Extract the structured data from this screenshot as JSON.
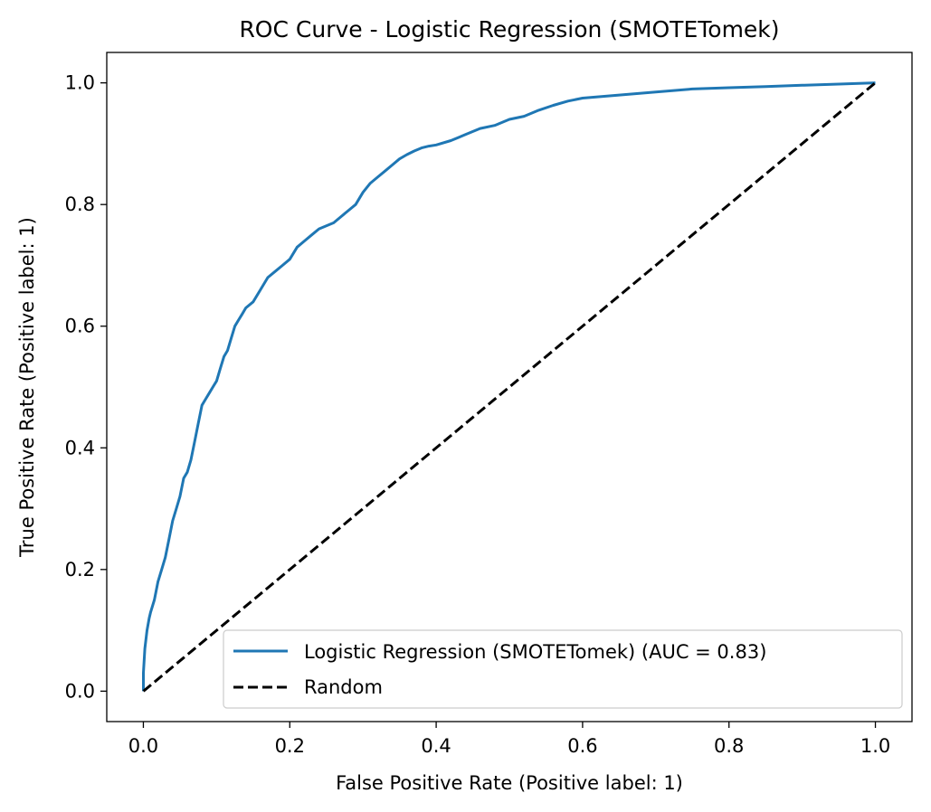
{
  "chart_data": {
    "type": "line",
    "title": "ROC Curve - Logistic Regression (SMOTETomek)",
    "xlabel": "False Positive Rate (Positive label: 1)",
    "ylabel": "True Positive Rate (Positive label: 1)",
    "xlim": [
      -0.05,
      1.05
    ],
    "ylim": [
      -0.05,
      1.05
    ],
    "x_ticks": [
      0.0,
      0.2,
      0.4,
      0.6,
      0.8,
      1.0
    ],
    "y_ticks": [
      0.0,
      0.2,
      0.4,
      0.6,
      0.8,
      1.0
    ],
    "x_tick_labels": [
      "0.0",
      "0.2",
      "0.4",
      "0.6",
      "0.8",
      "1.0"
    ],
    "y_tick_labels": [
      "0.0",
      "0.2",
      "0.4",
      "0.6",
      "0.8",
      "1.0"
    ],
    "grid": false,
    "legend_position": "lower-right",
    "series": [
      {
        "name": "Logistic Regression (SMOTETomek) (AUC = 0.83)",
        "color": "#1f77b4",
        "style": "solid",
        "x": [
          0.0,
          0.0,
          0.002,
          0.005,
          0.008,
          0.01,
          0.015,
          0.02,
          0.025,
          0.03,
          0.035,
          0.04,
          0.045,
          0.05,
          0.055,
          0.06,
          0.065,
          0.07,
          0.075,
          0.08,
          0.085,
          0.09,
          0.095,
          0.1,
          0.105,
          0.11,
          0.115,
          0.12,
          0.125,
          0.13,
          0.135,
          0.14,
          0.15,
          0.16,
          0.17,
          0.18,
          0.19,
          0.2,
          0.21,
          0.22,
          0.23,
          0.24,
          0.25,
          0.26,
          0.27,
          0.28,
          0.29,
          0.3,
          0.31,
          0.32,
          0.33,
          0.34,
          0.35,
          0.36,
          0.37,
          0.38,
          0.39,
          0.4,
          0.42,
          0.44,
          0.46,
          0.48,
          0.5,
          0.52,
          0.54,
          0.56,
          0.58,
          0.6,
          0.65,
          0.7,
          0.75,
          0.8,
          0.85,
          0.9,
          0.95,
          1.0
        ],
        "y": [
          0.0,
          0.03,
          0.07,
          0.1,
          0.12,
          0.13,
          0.15,
          0.18,
          0.2,
          0.22,
          0.25,
          0.28,
          0.3,
          0.32,
          0.35,
          0.36,
          0.38,
          0.41,
          0.44,
          0.47,
          0.48,
          0.49,
          0.5,
          0.51,
          0.53,
          0.55,
          0.56,
          0.58,
          0.6,
          0.61,
          0.62,
          0.63,
          0.64,
          0.66,
          0.68,
          0.69,
          0.7,
          0.71,
          0.73,
          0.74,
          0.75,
          0.76,
          0.765,
          0.77,
          0.78,
          0.79,
          0.8,
          0.82,
          0.835,
          0.845,
          0.855,
          0.865,
          0.875,
          0.882,
          0.888,
          0.893,
          0.896,
          0.898,
          0.905,
          0.915,
          0.925,
          0.93,
          0.94,
          0.945,
          0.955,
          0.963,
          0.97,
          0.975,
          0.98,
          0.985,
          0.99,
          0.992,
          0.994,
          0.996,
          0.998,
          1.0
        ]
      },
      {
        "name": "Random",
        "color": "#000000",
        "style": "dashed",
        "x": [
          0.0,
          1.0
        ],
        "y": [
          0.0,
          1.0
        ]
      }
    ]
  }
}
